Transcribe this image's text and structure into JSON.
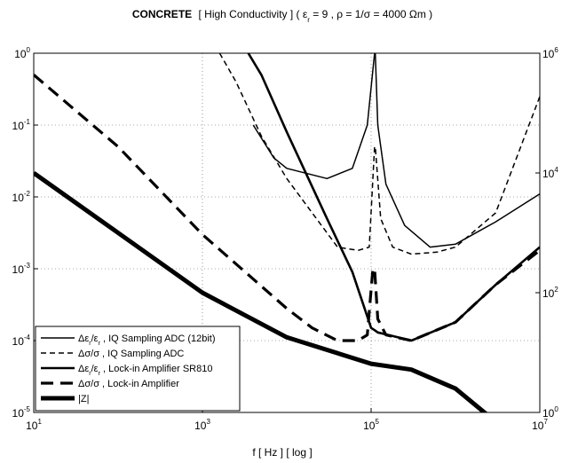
{
  "chart_data": {
    "type": "line",
    "title_parts": {
      "bold": "CONCRETE",
      "rest_prefix": "[ High Conductivity ] ( ε",
      "sub_r": "r",
      "rest_mid": " = 9 , ρ = 1/σ = 4000 Ωm )"
    },
    "xlabel": "f [ Hz ] [ log ]",
    "ylabel": "",
    "ylabel_right": "",
    "x_scale": "log",
    "y_scale": "log",
    "y2_scale": "log",
    "xlim": [
      10,
      10000000
    ],
    "ylim": [
      1e-05,
      1
    ],
    "y2lim": [
      1,
      1000000
    ],
    "x_ticks": [
      {
        "value": 10,
        "base": "10",
        "exp": "1"
      },
      {
        "value": 1000,
        "base": "10",
        "exp": "3"
      },
      {
        "value": 100000,
        "base": "10",
        "exp": "5"
      },
      {
        "value": 10000000,
        "base": "10",
        "exp": "7"
      }
    ],
    "y_ticks": [
      {
        "value": 1,
        "base": "10",
        "exp": "0"
      },
      {
        "value": 0.1,
        "base": "10",
        "exp": "-1"
      },
      {
        "value": 0.01,
        "base": "10",
        "exp": "-2"
      },
      {
        "value": 0.001,
        "base": "10",
        "exp": "-3"
      },
      {
        "value": 0.0001,
        "base": "10",
        "exp": "-4"
      },
      {
        "value": 1e-05,
        "base": "10",
        "exp": "-5"
      }
    ],
    "y2_ticks": [
      {
        "value": 1000000,
        "base": "10",
        "exp": "6"
      },
      {
        "value": 10000,
        "base": "10",
        "exp": "4"
      },
      {
        "value": 100,
        "base": "10",
        "exp": "2"
      },
      {
        "value": 1,
        "base": "10",
        "exp": "0"
      }
    ],
    "grid": "dotted",
    "legend_position": "bottom-left",
    "series": [
      {
        "name": "Δε/ε, IQ Sampling ADC (12bit)",
        "legend_parts": {
          "a": "Δε",
          "sa": "r",
          "slash": "/ε",
          "sb": "r",
          "tail": " , IQ Sampling ADC (12bit)"
        },
        "style": "thin-solid",
        "axis": "left",
        "x": [
          4000,
          7000,
          10000,
          30000,
          60000,
          90000,
          110000,
          112000,
          120000,
          150000,
          250000,
          500000,
          1000000,
          3000000,
          10000000
        ],
        "y": [
          0.1,
          0.035,
          0.025,
          0.018,
          0.025,
          0.1,
          1.0,
          1.0,
          0.1,
          0.015,
          0.004,
          0.002,
          0.0022,
          0.0045,
          0.011
        ]
      },
      {
        "name": "Δσ/σ, IQ Sampling ADC",
        "legend_parts": {
          "a": "Δσ",
          "slash": "/σ",
          "tail": " , IQ Sampling ADC"
        },
        "style": "thin-dashed",
        "axis": "left",
        "x": [
          1600,
          2500,
          5000,
          10000,
          20000,
          40000,
          70000,
          95000,
          110000,
          112000,
          130000,
          180000,
          300000,
          600000,
          1000000,
          3000000,
          10000000
        ],
        "y": [
          1.0,
          0.4,
          0.07,
          0.018,
          0.006,
          0.002,
          0.0018,
          0.002,
          0.05,
          0.05,
          0.005,
          0.002,
          0.0016,
          0.0017,
          0.002,
          0.006,
          0.25
        ]
      },
      {
        "name": "Δε/ε, Lock-in Amplifier SR810",
        "legend_parts": {
          "a": "Δε",
          "sa": "r",
          "slash": "/ε",
          "sb": "r",
          "tail": " , Lock-in Amplifier SR810"
        },
        "style": "medium-solid",
        "axis": "left",
        "x": [
          3500,
          5000,
          10000,
          30000,
          60000,
          100000,
          110000,
          120000,
          160000,
          300000,
          1000000,
          3000000,
          10000000
        ],
        "y": [
          1.0,
          0.5,
          0.08,
          0.005,
          0.0009,
          0.00015,
          0.00014,
          0.00013,
          0.00012,
          0.0001,
          0.00018,
          0.0006,
          0.002
        ]
      },
      {
        "name": "Δσ/σ, Lock-in Amplifier",
        "legend_parts": {
          "a": "Δσ",
          "slash": "/σ",
          "tail": " , Lock-in Amplifier"
        },
        "style": "thick-dashed",
        "axis": "left",
        "x": [
          10,
          100,
          1000,
          10000,
          20000,
          40000,
          70000,
          90000,
          105000,
          110000,
          120000,
          150000,
          300000,
          1000000,
          3000000,
          10000000
        ],
        "y": [
          0.5,
          0.05,
          0.003,
          0.00028,
          0.00015,
          0.0001,
          0.0001,
          0.00012,
          0.001,
          0.001,
          0.0002,
          0.00012,
          0.0001,
          0.00018,
          0.0006,
          0.0018
        ]
      },
      {
        "name": "|Z|",
        "legend_parts": {
          "tail": "|Z|"
        },
        "style": "extra-thick-solid",
        "axis": "right",
        "x": [
          10,
          100,
          1000,
          10000,
          100000,
          300000,
          1000000,
          3000000,
          10000000
        ],
        "y2": [
          10000,
          1000,
          100,
          18,
          6.5,
          5.2,
          2.5,
          0.7,
          0.1
        ]
      }
    ]
  }
}
